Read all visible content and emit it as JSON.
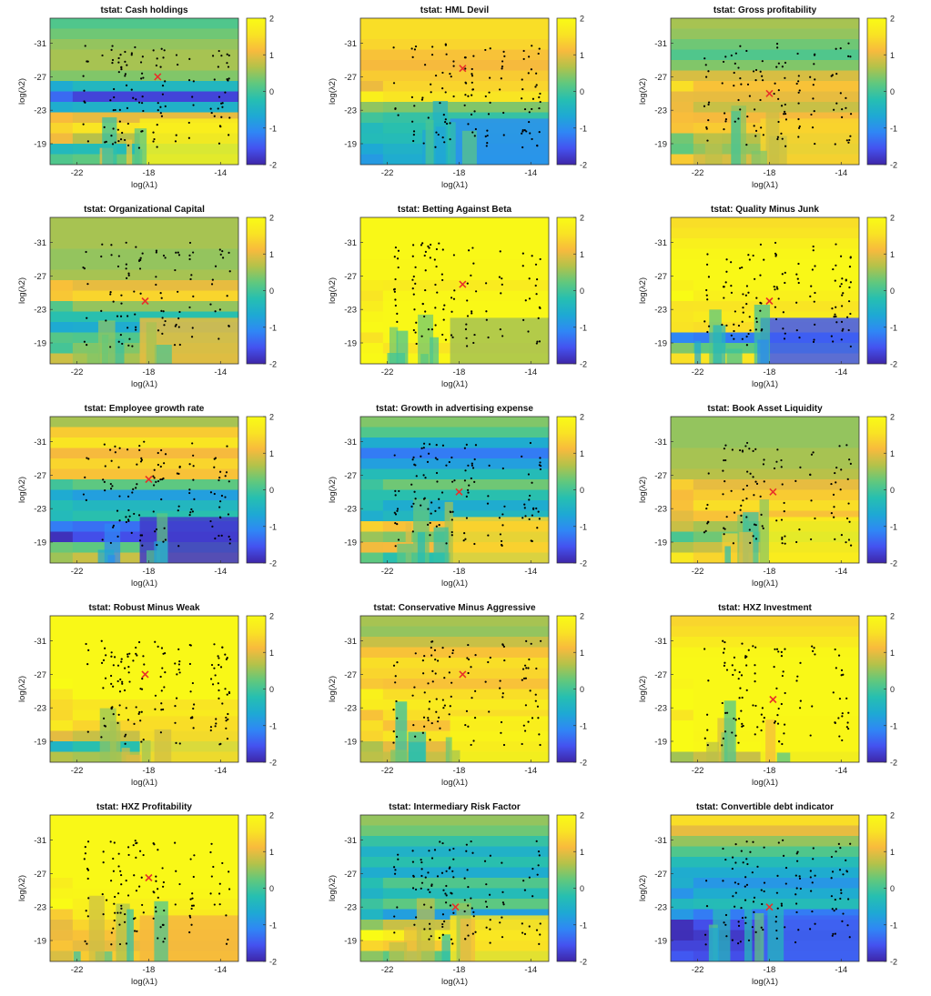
{
  "figure": {
    "colormap": "parula",
    "colormap_stops": [
      "#3e26a8",
      "#4452f0",
      "#2f87f5",
      "#1ea9d4",
      "#26bfb1",
      "#60c87e",
      "#b3c24a",
      "#f8ba3d",
      "#f9e324",
      "#f9fb15"
    ],
    "marker_color": "#000000",
    "optimum_marker_color": "#e8312a"
  },
  "chart_data": [
    {
      "type": "heatmap",
      "title": "tstat: Cash holdings",
      "xlabel": "log(λ1)",
      "ylabel": "log(λ2)",
      "xticks": [
        -22,
        -18,
        -14
      ],
      "yticks": [
        -31,
        -27,
        -23,
        -19
      ],
      "xlim": [
        -23.5,
        -13
      ],
      "ylim": [
        -34,
        -16.5
      ],
      "y_reversed": true,
      "clim": [
        -2,
        2
      ],
      "colorbar_ticks": [
        2,
        1,
        0,
        -1,
        -2
      ],
      "bands_tstat": [
        0.1,
        0.3,
        0.5,
        0.6,
        0.6,
        0.4,
        -0.4,
        -1.7,
        -0.5,
        1.0,
        1.6,
        0.7,
        -0.3,
        0.2
      ],
      "lower_block_tstat": 1.8,
      "optimum": [
        -17.5,
        -27
      ]
    },
    {
      "type": "heatmap",
      "title": "tstat: HML Devil",
      "xlabel": "log(λ1)",
      "ylabel": "log(λ2)",
      "xticks": [
        -22,
        -18,
        -14
      ],
      "yticks": [
        -31,
        -27,
        -23,
        -19
      ],
      "xlim": [
        -23.5,
        -13
      ],
      "ylim": [
        -34,
        -16.5
      ],
      "y_reversed": true,
      "clim": [
        -2,
        2
      ],
      "colorbar_ticks": [
        2,
        1,
        0,
        -1,
        -2
      ],
      "bands_tstat": [
        1.5,
        1.5,
        1.4,
        1.2,
        1.1,
        1.3,
        1.4,
        1.6,
        0.4,
        -0.1,
        -0.2,
        -0.3,
        -0.5,
        -0.6
      ],
      "lower_block_tstat": -1.0,
      "optimum": [
        -17.8,
        -28
      ]
    },
    {
      "type": "heatmap",
      "title": "tstat: Gross profitability",
      "xlabel": "log(λ1)",
      "ylabel": "log(λ2)",
      "xticks": [
        -22,
        -18,
        -14
      ],
      "yticks": [
        -31,
        -27,
        -23,
        -19
      ],
      "xlim": [
        -23.5,
        -13
      ],
      "ylim": [
        -34,
        -16.5
      ],
      "y_reversed": true,
      "clim": [
        -2,
        2
      ],
      "colorbar_ticks": [
        2,
        1,
        0,
        -1,
        -2
      ],
      "bands_tstat": [
        0.6,
        0.5,
        0.3,
        0.1,
        0.4,
        0.9,
        1.2,
        1.0,
        0.8,
        1.1,
        1.3,
        0.7,
        0.5,
        0.9
      ],
      "lower_block_tstat": 1.4,
      "optimum": [
        -18,
        -25
      ]
    },
    {
      "type": "heatmap",
      "title": "tstat: Organizational Capital",
      "xlabel": "log(λ1)",
      "ylabel": "log(λ2)",
      "xticks": [
        -22,
        -18,
        -14
      ],
      "yticks": [
        -31,
        -27,
        -23,
        -19
      ],
      "xlim": [
        -23.5,
        -13
      ],
      "ylim": [
        -34,
        -16.5
      ],
      "y_reversed": true,
      "clim": [
        -2,
        2
      ],
      "colorbar_ticks": [
        2,
        1,
        0,
        -1,
        -2
      ],
      "bands_tstat": [
        0.6,
        0.6,
        0.6,
        0.5,
        0.5,
        0.6,
        1.0,
        1.4,
        0.5,
        -0.2,
        -0.6,
        0.1,
        0.4,
        0.6
      ],
      "lower_block_tstat": 1.0,
      "optimum": [
        -18.2,
        -24
      ]
    },
    {
      "type": "heatmap",
      "title": "tstat: Betting Against Beta",
      "xlabel": "log(λ1)",
      "ylabel": "log(λ2)",
      "xticks": [
        -22,
        -18,
        -14
      ],
      "yticks": [
        -31,
        -27,
        -23,
        -19
      ],
      "xlim": [
        -23.5,
        -13
      ],
      "ylim": [
        -34,
        -16.5
      ],
      "y_reversed": true,
      "clim": [
        -2,
        2
      ],
      "colorbar_ticks": [
        2,
        1,
        0,
        -1,
        -2
      ],
      "bands_tstat": [
        1.95,
        1.95,
        1.95,
        1.95,
        1.9,
        1.9,
        1.7,
        1.9,
        1.95,
        1.95,
        1.95,
        1.9,
        1.6,
        1.9
      ],
      "lower_block_tstat": 0.6,
      "optimum": [
        -17.8,
        -26
      ]
    },
    {
      "type": "heatmap",
      "title": "tstat: Quality Minus Junk",
      "xlabel": "log(λ1)",
      "ylabel": "log(λ2)",
      "xticks": [
        -22,
        -18,
        -14
      ],
      "yticks": [
        -31,
        -27,
        -23,
        -19
      ],
      "xlim": [
        -23.5,
        -13
      ],
      "ylim": [
        -34,
        -16.5
      ],
      "y_reversed": true,
      "clim": [
        -2,
        2
      ],
      "colorbar_ticks": [
        2,
        1,
        0,
        -1,
        -2
      ],
      "bands_tstat": [
        1.5,
        1.6,
        1.8,
        1.9,
        1.95,
        1.95,
        1.9,
        1.8,
        1.6,
        1.7,
        1.5,
        -1.2,
        0.2,
        1.6
      ],
      "lower_block_tstat": -1.5,
      "optimum": [
        -18,
        -24
      ]
    },
    {
      "type": "heatmap",
      "title": "tstat: Employee growth rate",
      "xlabel": "log(λ1)",
      "ylabel": "log(λ2)",
      "xticks": [
        -22,
        -18,
        -14
      ],
      "yticks": [
        -31,
        -27,
        -23,
        -19
      ],
      "xlim": [
        -23.5,
        -13
      ],
      "ylim": [
        -34,
        -16.5
      ],
      "y_reversed": true,
      "clim": [
        -2,
        2
      ],
      "colorbar_ticks": [
        2,
        1,
        0,
        -1,
        -2
      ],
      "bands_tstat": [
        0.6,
        1.3,
        1.6,
        1.1,
        1.4,
        1.2,
        0.2,
        -0.8,
        -0.4,
        -0.2,
        -1.3,
        -1.6,
        0.2,
        0.8
      ],
      "lower_block_tstat": -1.8,
      "optimum": [
        -18,
        -26.5
      ]
    },
    {
      "type": "heatmap",
      "title": "tstat: Growth in advertising expense",
      "xlabel": "log(λ1)",
      "ylabel": "log(λ2)",
      "xticks": [
        -22,
        -18,
        -14
      ],
      "yticks": [
        -31,
        -27,
        -23,
        -19
      ],
      "xlim": [
        -23.5,
        -13
      ],
      "ylim": [
        -34,
        -16.5
      ],
      "y_reversed": true,
      "clim": [
        -2,
        2
      ],
      "colorbar_ticks": [
        2,
        1,
        0,
        -1,
        -2
      ],
      "bands_tstat": [
        0.4,
        0.1,
        -0.6,
        -1.2,
        -0.8,
        -0.3,
        0.3,
        -0.2,
        -0.6,
        -0.4,
        1.2,
        0.4,
        1.1,
        -0.2
      ],
      "lower_block_tstat": 1.4,
      "optimum": [
        -18,
        -25
      ]
    },
    {
      "type": "heatmap",
      "title": "tstat: Book Asset Liquidity",
      "xlabel": "log(λ1)",
      "ylabel": "log(λ2)",
      "xticks": [
        -22,
        -18,
        -14
      ],
      "yticks": [
        -31,
        -27,
        -23,
        -19
      ],
      "xlim": [
        -23.5,
        -13
      ],
      "ylim": [
        -34,
        -16.5
      ],
      "y_reversed": true,
      "clim": [
        -2,
        2
      ],
      "colorbar_ticks": [
        2,
        1,
        0,
        -1,
        -2
      ],
      "bands_tstat": [
        0.5,
        0.5,
        0.5,
        0.6,
        0.6,
        0.7,
        1.0,
        1.3,
        1.5,
        1.2,
        0.6,
        0.3,
        0.8,
        1.4
      ],
      "lower_block_tstat": 1.8,
      "optimum": [
        -17.8,
        -25
      ]
    },
    {
      "type": "heatmap",
      "title": "tstat: Robust Minus Weak",
      "xlabel": "log(λ1)",
      "ylabel": "log(λ2)",
      "xticks": [
        -22,
        -18,
        -14
      ],
      "yticks": [
        -31,
        -27,
        -23,
        -19
      ],
      "xlim": [
        -23.5,
        -13
      ],
      "ylim": [
        -34,
        -16.5
      ],
      "y_reversed": true,
      "clim": [
        -2,
        2
      ],
      "colorbar_ticks": [
        2,
        1,
        0,
        -1,
        -2
      ],
      "bands_tstat": [
        1.95,
        1.95,
        1.95,
        1.95,
        1.95,
        1.95,
        1.95,
        1.95,
        1.6,
        1.7,
        1.4,
        0.8,
        -0.2,
        0.6
      ],
      "lower_block_tstat": 1.5,
      "optimum": [
        -18.2,
        -27
      ]
    },
    {
      "type": "heatmap",
      "title": "tstat: Conservative Minus Aggressive",
      "xlabel": "log(λ1)",
      "ylabel": "log(λ2)",
      "xticks": [
        -22,
        -18,
        -14
      ],
      "yticks": [
        -31,
        -27,
        -23,
        -19
      ],
      "xlim": [
        -23.5,
        -13
      ],
      "ylim": [
        -34,
        -16.5
      ],
      "y_reversed": true,
      "clim": [
        -2,
        2
      ],
      "colorbar_ticks": [
        2,
        1,
        0,
        -1,
        -2
      ],
      "bands_tstat": [
        0.6,
        0.5,
        0.8,
        1.2,
        1.5,
        1.4,
        1.2,
        1.5,
        1.7,
        1.5,
        1.2,
        1.6,
        1.0,
        0.8
      ],
      "lower_block_tstat": 1.9,
      "optimum": [
        -17.8,
        -27
      ]
    },
    {
      "type": "heatmap",
      "title": "tstat: HXZ Investment",
      "xlabel": "log(λ1)",
      "ylabel": "log(λ2)",
      "xticks": [
        -22,
        -18,
        -14
      ],
      "yticks": [
        -31,
        -27,
        -23,
        -19
      ],
      "xlim": [
        -23.5,
        -13
      ],
      "ylim": [
        -34,
        -16.5
      ],
      "y_reversed": true,
      "clim": [
        -2,
        2
      ],
      "colorbar_ticks": [
        2,
        1,
        0,
        -1,
        -2
      ],
      "bands_tstat": [
        1.4,
        1.5,
        1.7,
        1.9,
        1.95,
        1.95,
        1.95,
        1.95,
        1.95,
        1.95,
        1.95,
        1.9,
        1.95,
        0.8
      ],
      "lower_block_tstat": 1.9,
      "optimum": [
        -17.8,
        -24
      ]
    },
    {
      "type": "heatmap",
      "title": "tstat: HXZ Profitability",
      "xlabel": "log(λ1)",
      "ylabel": "log(λ2)",
      "xticks": [
        -22,
        -18,
        -14
      ],
      "yticks": [
        -31,
        -27,
        -23,
        -19
      ],
      "xlim": [
        -23.5,
        -13
      ],
      "ylim": [
        -34,
        -16.5
      ],
      "y_reversed": true,
      "clim": [
        -2,
        2
      ],
      "colorbar_ticks": [
        2,
        1,
        0,
        -1,
        -2
      ],
      "bands_tstat": [
        1.95,
        1.95,
        1.95,
        1.95,
        1.95,
        1.95,
        1.95,
        1.9,
        1.8,
        1.7,
        1.4,
        1.2,
        1.0,
        1.3
      ],
      "lower_block_tstat": 1.1,
      "optimum": [
        -18,
        -26.5
      ]
    },
    {
      "type": "heatmap",
      "title": "tstat: Intermediary Risk Factor",
      "xlabel": "log(λ1)",
      "ylabel": "log(λ2)",
      "xticks": [
        -22,
        -18,
        -14
      ],
      "yticks": [
        -31,
        -27,
        -23,
        -19
      ],
      "xlim": [
        -23.5,
        -13
      ],
      "ylim": [
        -34,
        -16.5
      ],
      "y_reversed": true,
      "clim": [
        -2,
        2
      ],
      "colorbar_ticks": [
        2,
        1,
        0,
        -1,
        -2
      ],
      "bands_tstat": [
        0.5,
        0.3,
        -0.1,
        -0.5,
        -0.2,
        -0.6,
        0.1,
        -0.3,
        0.2,
        -0.8,
        0.8,
        1.8,
        1.3,
        0.2
      ],
      "lower_block_tstat": 1.6,
      "optimum": [
        -18.2,
        -23
      ]
    },
    {
      "type": "heatmap",
      "title": "tstat: Convertible debt indicator",
      "xlabel": "log(λ1)",
      "ylabel": "log(λ2)",
      "xticks": [
        -22,
        -18,
        -14
      ],
      "yticks": [
        -31,
        -27,
        -23,
        -19
      ],
      "xlim": [
        -23.5,
        -13
      ],
      "ylim": [
        -34,
        -16.5
      ],
      "y_reversed": true,
      "clim": [
        -2,
        2
      ],
      "colorbar_ticks": [
        2,
        1,
        0,
        -1,
        -2
      ],
      "bands_tstat": [
        1.5,
        1.0,
        0.5,
        0.1,
        -0.3,
        -0.6,
        -0.9,
        -0.6,
        -0.3,
        -1.2,
        -1.6,
        -1.8,
        -1.7,
        -1.6
      ],
      "lower_block_tstat": -1.4,
      "optimum": [
        -18,
        -23
      ]
    }
  ]
}
